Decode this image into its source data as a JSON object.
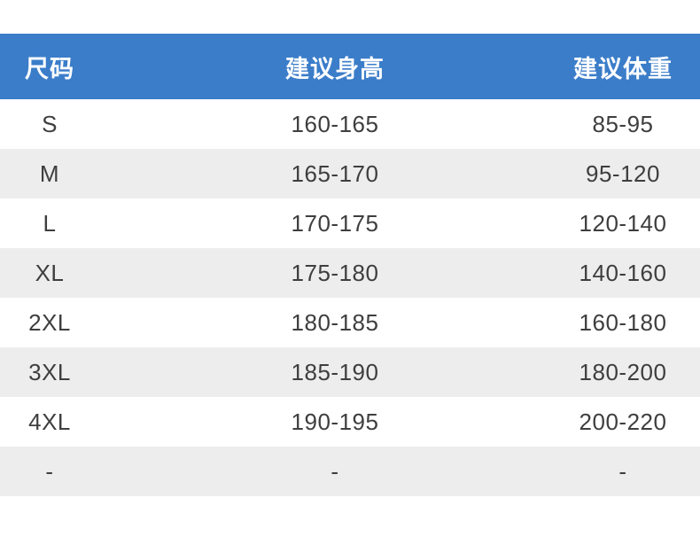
{
  "page": {
    "background": "#ffffff"
  },
  "table": {
    "style": {
      "header_bg": "#3b7dc9",
      "header_text": "#ffffff",
      "row_bg": "#ffffff",
      "row_alt_bg": "#ededed",
      "text_color": "#3e3e3e"
    },
    "columns": [
      {
        "key": "size",
        "label": "尺码"
      },
      {
        "key": "height",
        "label": "建议身高"
      },
      {
        "key": "weight",
        "label": "建议体重"
      }
    ],
    "rows": [
      {
        "size": "S",
        "height": "160-165",
        "weight": "85-95"
      },
      {
        "size": "M",
        "height": "165-170",
        "weight": "95-120"
      },
      {
        "size": "L",
        "height": "170-175",
        "weight": "120-140"
      },
      {
        "size": "XL",
        "height": "175-180",
        "weight": "140-160"
      },
      {
        "size": "2XL",
        "height": "180-185",
        "weight": "160-180"
      },
      {
        "size": "3XL",
        "height": "185-190",
        "weight": "180-200"
      },
      {
        "size": "4XL",
        "height": "190-195",
        "weight": "200-220"
      },
      {
        "size": "-",
        "height": "-",
        "weight": "-"
      }
    ]
  }
}
